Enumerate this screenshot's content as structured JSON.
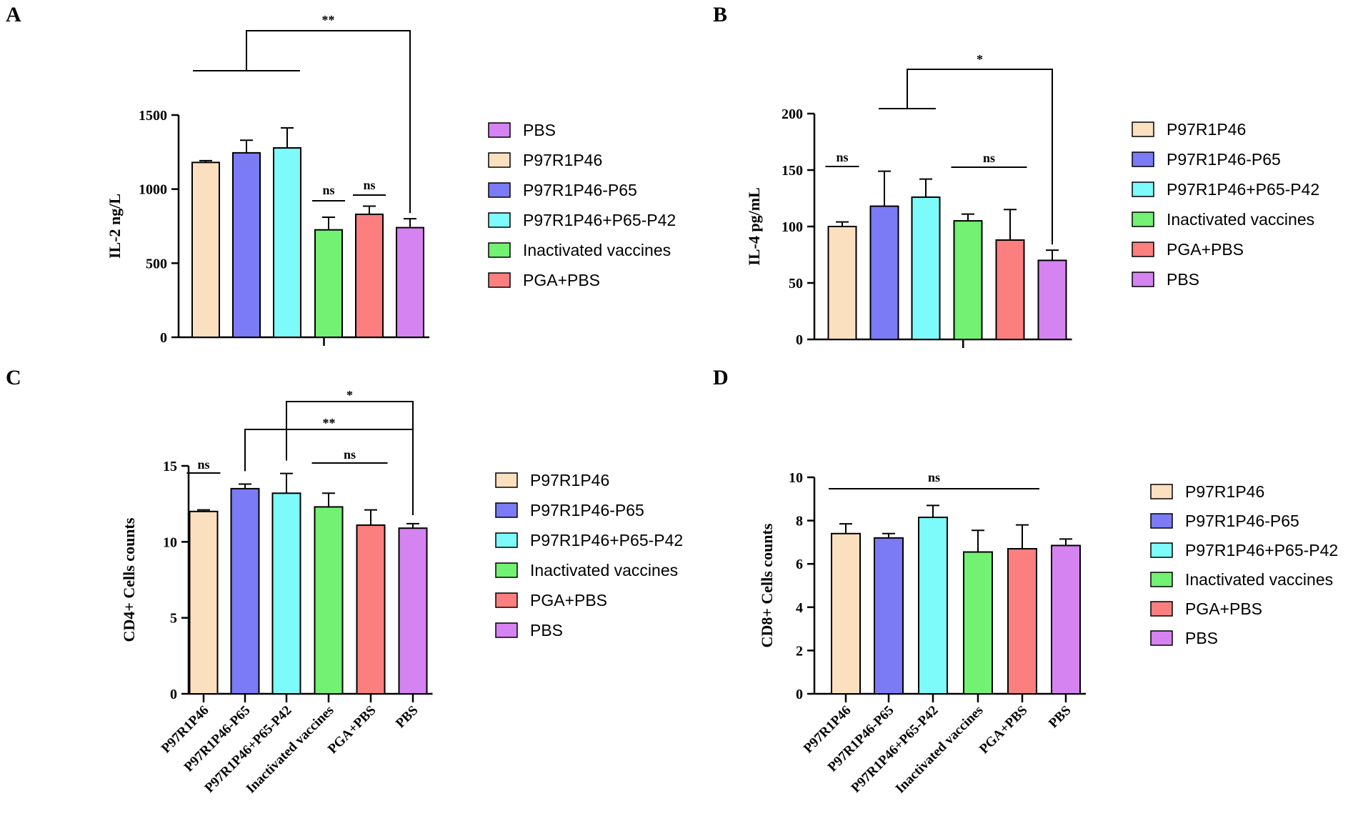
{
  "colors": {
    "P97R1P46": "#fbe0c0",
    "P97R1P46-P65": "#7b7bf5",
    "P97R1P46+P65-P42": "#7dfafa",
    "Inactivated vaccines": "#72f172",
    "PGA+PBS": "#fb7f7f",
    "PBS": "#d583f1"
  },
  "chart_data": [
    {
      "type": "bar",
      "panel": "A",
      "ylabel": "IL-2 ng/L",
      "ylim": [
        0,
        1500
      ],
      "yticks": [
        0,
        500,
        1000,
        1500
      ],
      "categories": [
        "P97R1P46",
        "P97R1P46-P65",
        "P97R1P46+P65-P42",
        "Inactivated vaccines",
        "PGA+PBS",
        "PBS"
      ],
      "values": [
        1180,
        1245,
        1278,
        725,
        830,
        740
      ],
      "errors": [
        12,
        85,
        135,
        85,
        55,
        60
      ],
      "show_xticklabels": false,
      "legend": [
        "PBS",
        "P97R1P46",
        "P97R1P46-P65",
        "P97R1P46+P65-P42",
        "Inactivated vaccines",
        "PGA+PBS"
      ],
      "significance": [
        {
          "label": "ns",
          "type": "group",
          "from": 3,
          "to": 3
        },
        {
          "label": "ns",
          "type": "group",
          "from": 4,
          "to": 4
        },
        {
          "label": "**",
          "type": "bracket",
          "group_from": 0,
          "group_to": 2,
          "target": 5
        }
      ]
    },
    {
      "type": "bar",
      "panel": "B",
      "ylabel": "IL-4 pg/mL",
      "ylim": [
        0,
        200
      ],
      "yticks": [
        0,
        50,
        100,
        150,
        200
      ],
      "categories": [
        "P97R1P46",
        "P97R1P46-P65",
        "P97R1P46+P65-P42",
        "Inactivated vaccines",
        "PGA+PBS",
        "PBS"
      ],
      "values": [
        100,
        118,
        126,
        105,
        88,
        70
      ],
      "errors": [
        4,
        31,
        16,
        6,
        27,
        9
      ],
      "show_xticklabels": false,
      "legend": [
        "P97R1P46",
        "P97R1P46-P65",
        "P97R1P46+P65-P42",
        "Inactivated vaccines",
        "PGA+PBS",
        "PBS"
      ],
      "significance": [
        {
          "label": "ns",
          "type": "group",
          "from": 0,
          "to": 0
        },
        {
          "label": "ns",
          "type": "group",
          "from": 3,
          "to": 4
        },
        {
          "label": "*",
          "type": "bracket",
          "group_from": 1,
          "group_to": 2,
          "target": 5
        }
      ]
    },
    {
      "type": "bar",
      "panel": "C",
      "ylabel": "CD4+ Cells counts",
      "ylim": [
        0,
        15
      ],
      "yticks": [
        0,
        5,
        10,
        15
      ],
      "categories": [
        "P97R1P46",
        "P97R1P46-P65",
        "P97R1P46+P65-P42",
        "Inactivated vaccines",
        "PGA+PBS",
        "PBS"
      ],
      "values": [
        12.0,
        13.5,
        13.2,
        12.3,
        11.1,
        10.9
      ],
      "errors": [
        0.1,
        0.3,
        1.3,
        0.9,
        1.0,
        0.3
      ],
      "show_xticklabels": true,
      "legend": [
        "P97R1P46",
        "P97R1P46-P65",
        "P97R1P46+P65-P42",
        "Inactivated vaccines",
        "PGA+PBS",
        "PBS"
      ],
      "significance": [
        {
          "label": "ns",
          "type": "group",
          "from": 0,
          "to": 0
        },
        {
          "label": "ns",
          "type": "group",
          "from": 3,
          "to": 4
        },
        {
          "label": "**",
          "type": "simple_bracket",
          "from": 1,
          "to": 5
        },
        {
          "label": "*",
          "type": "simple_bracket",
          "from": 2,
          "to": 5
        }
      ]
    },
    {
      "type": "bar",
      "panel": "D",
      "ylabel": "CD8+ Cells counts",
      "ylim": [
        0,
        10
      ],
      "yticks": [
        0,
        2,
        4,
        6,
        8,
        10
      ],
      "categories": [
        "P97R1P46",
        "P97R1P46-P65",
        "P97R1P46+P65-P42",
        "Inactivated vaccines",
        "PGA+PBS",
        "PBS"
      ],
      "values": [
        7.4,
        7.2,
        8.15,
        6.55,
        6.7,
        6.85
      ],
      "errors": [
        0.45,
        0.2,
        0.55,
        1.0,
        1.1,
        0.3
      ],
      "show_xticklabels": true,
      "legend": [
        "P97R1P46",
        "P97R1P46-P65",
        "P97R1P46+P65-P42",
        "Inactivated vaccines",
        "PGA+PBS",
        "PBS"
      ],
      "significance": [
        {
          "label": "ns",
          "type": "group",
          "from": 0,
          "to": 4
        }
      ]
    }
  ]
}
